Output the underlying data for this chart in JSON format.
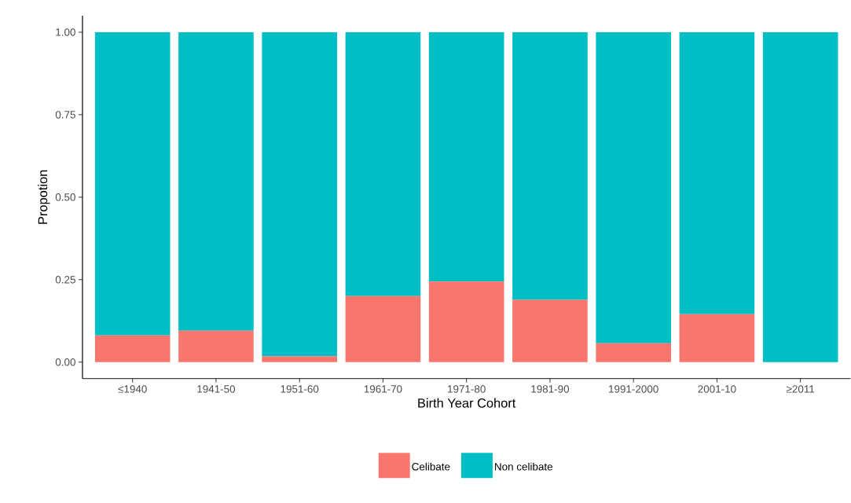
{
  "chart_data": {
    "type": "bar",
    "stacked": true,
    "xlabel": "Birth Year Cohort",
    "ylabel": "Propotion",
    "categories": [
      "≤1940",
      "1941-50",
      "1951-60",
      "1961-70",
      "1971-80",
      "1981-90",
      "1991-2000",
      "2001-10",
      "≥2011"
    ],
    "series": [
      {
        "name": "Celibate",
        "color": "#f8766d",
        "values": [
          0.081,
          0.095,
          0.018,
          0.2,
          0.244,
          0.189,
          0.057,
          0.145,
          0
        ]
      },
      {
        "name": "Non celibate",
        "color": "#00bfc4",
        "values": [
          0.919,
          0.905,
          0.982,
          0.8,
          0.756,
          0.811,
          0.943,
          0.855,
          1
        ]
      }
    ],
    "ylim": [
      -0.05,
      1.05
    ],
    "yticks": [
      {
        "value": 0,
        "label": "0.00"
      },
      {
        "value": 0.25,
        "label": "0.25"
      },
      {
        "value": 0.5,
        "label": "0.50"
      },
      {
        "value": 0.75,
        "label": "0.75"
      },
      {
        "value": 1,
        "label": "1.00"
      }
    ],
    "grid": false,
    "legend": "bottom"
  }
}
